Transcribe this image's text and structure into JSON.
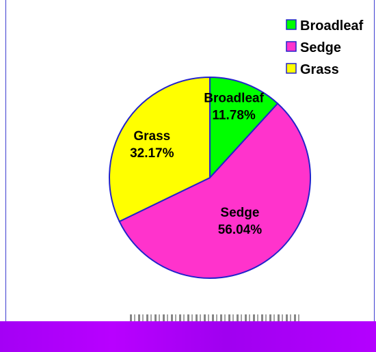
{
  "chart_data": {
    "type": "pie",
    "categories": [
      "Broadleaf",
      "Sedge",
      "Grass"
    ],
    "values": [
      11.78,
      56.04,
      32.17
    ],
    "value_labels": [
      "11.78%",
      "56.04%",
      "32.17%"
    ],
    "colors": [
      "#00ff00",
      "#ff33cc",
      "#ffff00"
    ],
    "edge_color": "#2222cc",
    "start_angle": "12 o'clock",
    "direction": "clockwise",
    "legend": {
      "position": "top-right",
      "entries": [
        "Broadleaf",
        "Sedge",
        "Grass"
      ]
    },
    "title": "",
    "grid": false
  }
}
